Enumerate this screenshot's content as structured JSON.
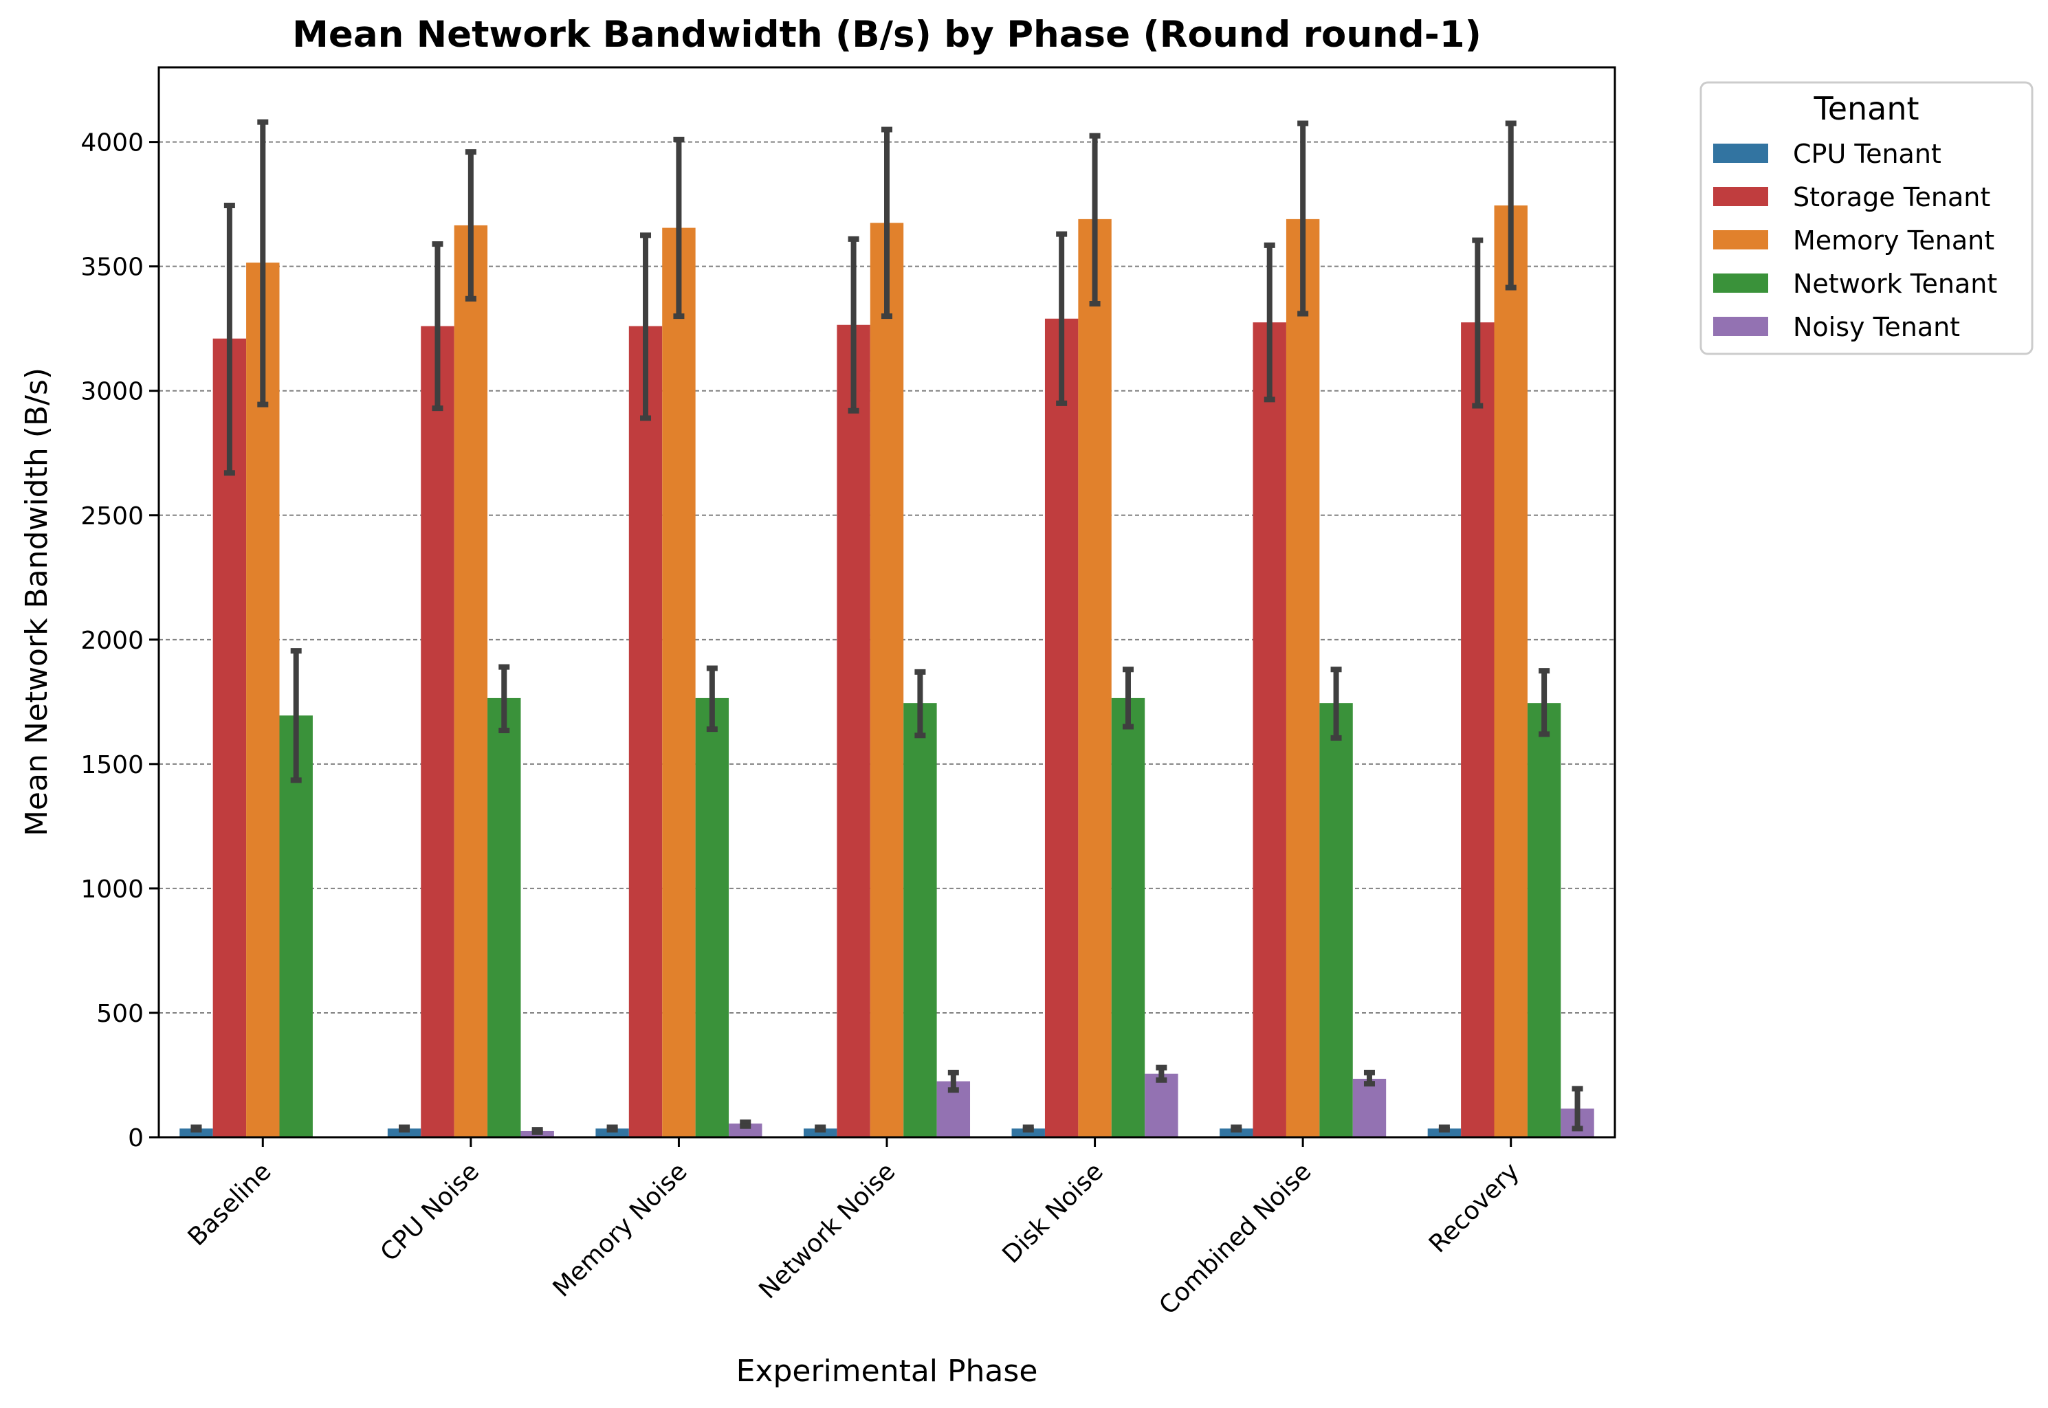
{
  "chart_data": {
    "type": "bar",
    "title": "Mean Network Bandwidth (B/s) by Phase (Round round-1)",
    "xlabel": "Experimental Phase",
    "ylabel": "Mean Network Bandwidth (B/s)",
    "ylim": [
      0,
      4300
    ],
    "yticks": [
      "0",
      "500",
      "1000",
      "1500",
      "2000",
      "2500",
      "3000",
      "3500",
      "4000"
    ],
    "grid": "horizontal dashed",
    "legend_title": "Tenant",
    "legend_placement": "outside top-right",
    "categories": [
      "Baseline",
      "CPU Noise",
      "Memory Noise",
      "Network Noise",
      "Disk Noise",
      "Combined Noise",
      "Recovery"
    ],
    "series": [
      {
        "name": "CPU Tenant",
        "color": "#3274a1",
        "values": [
          35,
          35,
          35,
          35,
          35,
          35,
          35
        ],
        "error_low": [
          30,
          30,
          30,
          30,
          30,
          30,
          30
        ],
        "error_high": [
          40,
          40,
          40,
          40,
          40,
          40,
          40
        ]
      },
      {
        "name": "Storage Tenant",
        "color": "#c03d3e",
        "values": [
          3210,
          3260,
          3260,
          3265,
          3290,
          3275,
          3275
        ],
        "error_low": [
          2670,
          2930,
          2890,
          2920,
          2950,
          2965,
          2940
        ],
        "error_high": [
          3745,
          3590,
          3625,
          3610,
          3630,
          3585,
          3605
        ]
      },
      {
        "name": "Memory Tenant",
        "color": "#e1812c",
        "values": [
          3515,
          3665,
          3655,
          3675,
          3690,
          3690,
          3745
        ],
        "error_low": [
          2945,
          3370,
          3300,
          3300,
          3350,
          3310,
          3415
        ],
        "error_high": [
          4080,
          3960,
          4010,
          4050,
          4025,
          4075,
          4075
        ]
      },
      {
        "name": "Network Tenant",
        "color": "#3a923a",
        "values": [
          1695,
          1765,
          1765,
          1745,
          1765,
          1745,
          1745
        ],
        "error_low": [
          1435,
          1635,
          1640,
          1615,
          1650,
          1605,
          1620
        ],
        "error_high": [
          1955,
          1890,
          1885,
          1870,
          1880,
          1880,
          1875
        ]
      },
      {
        "name": "Noisy Tenant",
        "color": "#9372b2",
        "values": [
          0,
          25,
          55,
          225,
          255,
          235,
          115
        ],
        "error_low": [
          0,
          20,
          45,
          190,
          230,
          215,
          35
        ],
        "error_high": [
          0,
          30,
          60,
          260,
          280,
          260,
          195
        ]
      }
    ]
  }
}
